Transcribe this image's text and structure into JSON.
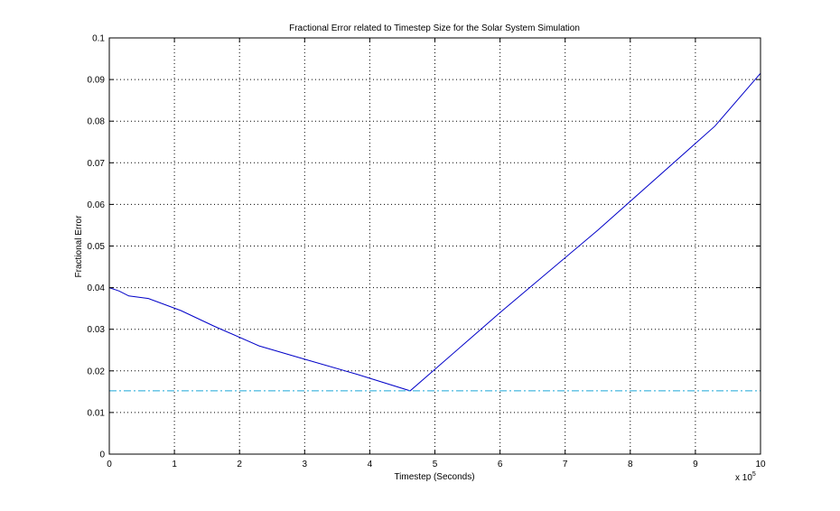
{
  "chart_data": {
    "type": "line",
    "title": "Fractional Error related to Timestep Size for the Solar System Simulation",
    "xlabel": "Timestep (Seconds)",
    "ylabel": "Fractional Error",
    "x_multiplier_base": "x 10",
    "x_multiplier_exp": "5",
    "xlim": [
      0,
      10
    ],
    "ylim": [
      0,
      0.1
    ],
    "x_ticks": [
      0,
      1,
      2,
      3,
      4,
      5,
      6,
      7,
      8,
      9,
      10
    ],
    "x_tick_labels": [
      "0",
      "1",
      "2",
      "3",
      "4",
      "5",
      "6",
      "7",
      "8",
      "9",
      "10"
    ],
    "y_ticks": [
      0,
      0.01,
      0.02,
      0.03,
      0.04,
      0.05,
      0.06,
      0.07,
      0.08,
      0.09,
      0.1
    ],
    "y_tick_labels": [
      "0",
      "0.01",
      "0.02",
      "0.03",
      "0.04",
      "0.05",
      "0.06",
      "0.07",
      "0.08",
      "0.09",
      "0.1"
    ],
    "grid": true,
    "legend": "none",
    "series": [
      {
        "style": "solid",
        "color": "#0000c8",
        "x": [
          0,
          0.15,
          0.3,
          0.6,
          1.1,
          1.6,
          2.3,
          3.0,
          3.8,
          4.62,
          6.0,
          7.5,
          9.3,
          10.0
        ],
        "y": [
          0.04,
          0.0392,
          0.038,
          0.0374,
          0.0345,
          0.0308,
          0.026,
          0.0228,
          0.0192,
          0.0152,
          0.034,
          0.0538,
          0.0788,
          0.0915
        ]
      },
      {
        "style": "dash-dot",
        "color": "#1aa6d6",
        "x": [
          0,
          10
        ],
        "y": [
          0.0152,
          0.0152
        ]
      }
    ]
  }
}
